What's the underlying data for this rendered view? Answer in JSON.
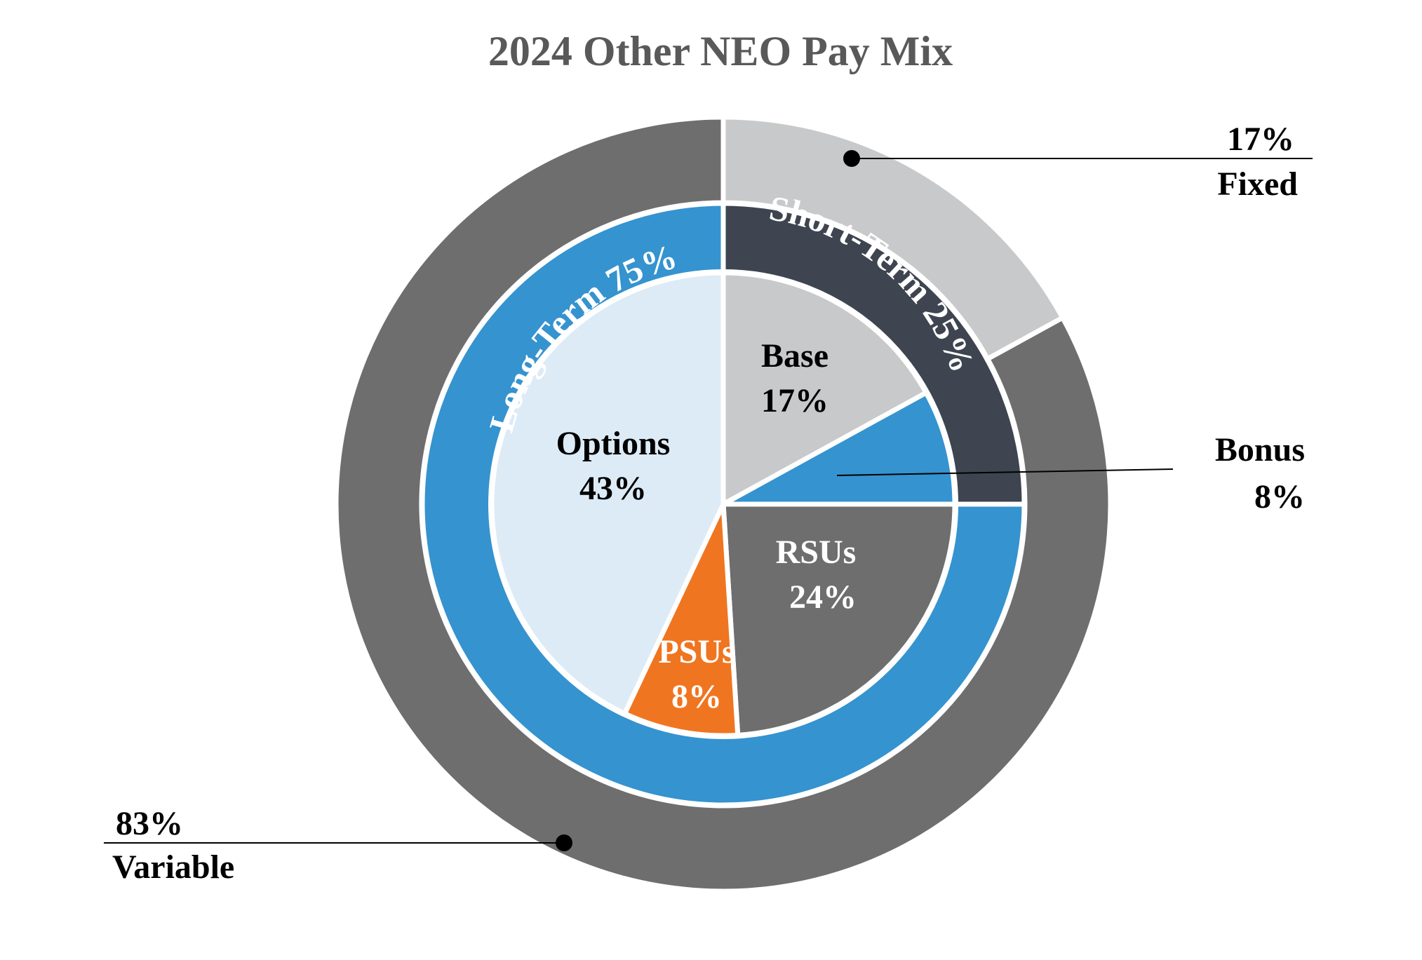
{
  "chart_data": {
    "type": "pie",
    "title": "2024 Other NEO Pay Mix",
    "rings": [
      {
        "name": "outer",
        "slices": [
          {
            "label": "Fixed",
            "value": 17,
            "value_label": "17%",
            "color": "#c8c9cb"
          },
          {
            "label": "Variable",
            "value": 83,
            "value_label": "83%",
            "color": "#6e6e6e"
          }
        ]
      },
      {
        "name": "middle",
        "slices": [
          {
            "label": "Short-Term 25%",
            "value": 25,
            "color": "#3e4550"
          },
          {
            "label": "Long-Term 75%",
            "value": 75,
            "color": "#3593cf"
          }
        ]
      },
      {
        "name": "inner",
        "slices": [
          {
            "label": "Base",
            "value": 17,
            "value_label": "17%",
            "color": "#c8c9cb",
            "text_color": "#000000"
          },
          {
            "label": "Bonus",
            "value": 8,
            "value_label": "8%",
            "color": "#3593cf",
            "text_color": "#000000"
          },
          {
            "label": "RSUs",
            "value": 24,
            "value_label": "24%",
            "color": "#6e6e6e",
            "text_color": "#ffffff"
          },
          {
            "label": "PSUs",
            "value": 8,
            "value_label": "8%",
            "color": "#f07520",
            "text_color": "#ffffff"
          },
          {
            "label": "Options",
            "value": 43,
            "value_label": "43%",
            "color": "#dcebf6",
            "text_color": "#000000"
          }
        ]
      }
    ],
    "legend": "none",
    "grid": false
  }
}
